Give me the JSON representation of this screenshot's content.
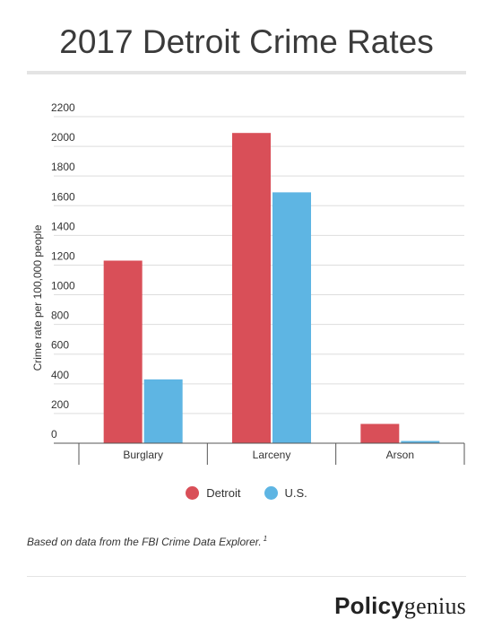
{
  "page_title": "2017 Detroit Crime Rates",
  "chart_data": {
    "type": "bar",
    "title": "2017 Detroit Crime Rates",
    "categories": [
      "Burglary",
      "Larceny",
      "Arson"
    ],
    "series": [
      {
        "name": "Detroit",
        "color": "#d94f58",
        "values": [
          1230,
          2090,
          130
        ]
      },
      {
        "name": "U.S.",
        "color": "#5eb5e3",
        "values": [
          430,
          1690,
          15
        ]
      }
    ],
    "xlabel": "",
    "ylabel": "Crime rate per 100,000 people",
    "ylim": [
      0,
      2200
    ],
    "yticks": [
      0,
      200,
      400,
      600,
      800,
      1000,
      1200,
      1400,
      1600,
      1800,
      2000,
      2200
    ],
    "grid": true,
    "legend": "bottom"
  },
  "legend": {
    "detroit": "Detroit",
    "us": "U.S."
  },
  "source_note": "Based on data from the FBI Crime Data Explorer.",
  "source_footnote": "1",
  "logo": {
    "bold": "Policy",
    "regular": "genius"
  }
}
